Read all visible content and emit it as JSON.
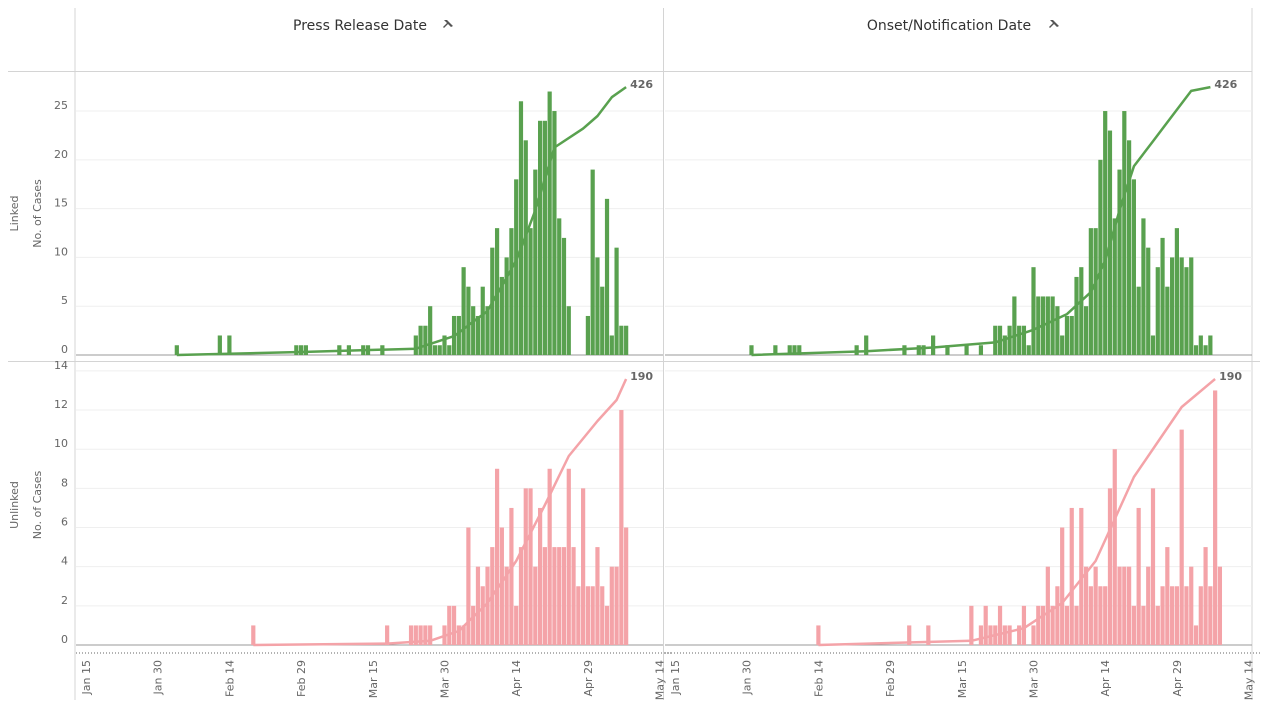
{
  "chart_data": [
    {
      "type": "bar",
      "title": "Press Release Date",
      "row_label": "Linked",
      "ylabel": "No. of Cases",
      "color": "#59a14f",
      "ylim": [
        0,
        29
      ],
      "yticks": [
        0,
        5,
        10,
        15,
        20,
        25
      ],
      "x": [
        "Feb 3",
        "Feb 12",
        "Feb 14",
        "Feb 28",
        "Feb 29",
        "Mar 1",
        "Mar 8",
        "Mar 10",
        "Mar 13",
        "Mar 14",
        "Mar 17",
        "Mar 24",
        "Mar 25",
        "Mar 26",
        "Mar 27",
        "Mar 28",
        "Mar 29",
        "Mar 30",
        "Mar 31",
        "Apr 1",
        "Apr 2",
        "Apr 3",
        "Apr 4",
        "Apr 5",
        "Apr 6",
        "Apr 7",
        "Apr 8",
        "Apr 9",
        "Apr 10",
        "Apr 11",
        "Apr 12",
        "Apr 13",
        "Apr 14",
        "Apr 15",
        "Apr 16",
        "Apr 17",
        "Apr 18",
        "Apr 19",
        "Apr 20",
        "Apr 21",
        "Apr 22",
        "Apr 23",
        "Apr 24",
        "Apr 25",
        "Apr 29",
        "Apr 30",
        "May 1",
        "May 2",
        "May 3",
        "May 4",
        "May 5",
        "May 6",
        "May 7"
      ],
      "values": [
        1,
        2,
        2,
        1,
        1,
        1,
        1,
        1,
        1,
        1,
        1,
        2,
        3,
        3,
        5,
        1,
        1,
        2,
        1,
        4,
        4,
        9,
        7,
        5,
        4,
        7,
        5,
        11,
        13,
        8,
        10,
        13,
        18,
        26,
        22,
        13,
        19,
        24,
        24,
        27,
        25,
        14,
        12,
        5,
        4,
        19,
        10,
        7,
        16,
        2,
        11,
        3,
        3
      ],
      "line": {
        "y2lim": [
          0,
          450
        ],
        "x": [
          "Feb 3",
          "Mar 1",
          "Mar 24",
          "Apr 1",
          "Apr 8",
          "Apr 14",
          "Apr 18",
          "Apr 22",
          "Apr 28",
          "May 1",
          "May 4",
          "May 7"
        ],
        "values": [
          0,
          5,
          10,
          30,
          70,
          150,
          230,
          330,
          360,
          380,
          410,
          426
        ]
      }
    },
    {
      "type": "bar",
      "title": "Onset/Notification Date",
      "color": "#59a14f",
      "ylim": [
        0,
        29
      ],
      "x": [
        "Jan 31",
        "Feb 5",
        "Feb 8",
        "Feb 9",
        "Feb 10",
        "Feb 22",
        "Feb 24",
        "Mar 3",
        "Mar 6",
        "Mar 7",
        "Mar 9",
        "Mar 12",
        "Mar 16",
        "Mar 19",
        "Mar 22",
        "Mar 23",
        "Mar 24",
        "Mar 25",
        "Mar 26",
        "Mar 27",
        "Mar 28",
        "Mar 29",
        "Mar 30",
        "Mar 31",
        "Apr 1",
        "Apr 2",
        "Apr 3",
        "Apr 4",
        "Apr 5",
        "Apr 6",
        "Apr 7",
        "Apr 8",
        "Apr 9",
        "Apr 10",
        "Apr 11",
        "Apr 12",
        "Apr 13",
        "Apr 14",
        "Apr 15",
        "Apr 16",
        "Apr 17",
        "Apr 18",
        "Apr 19",
        "Apr 20",
        "Apr 21",
        "Apr 22",
        "Apr 23",
        "Apr 24",
        "Apr 25",
        "Apr 26",
        "Apr 27",
        "Apr 28",
        "Apr 29",
        "Apr 30",
        "May 1",
        "May 2",
        "May 3",
        "May 4",
        "May 5",
        "May 6"
      ],
      "values": [
        1,
        1,
        1,
        1,
        1,
        1,
        2,
        1,
        1,
        1,
        2,
        1,
        1,
        1,
        3,
        3,
        2,
        3,
        6,
        3,
        3,
        1,
        9,
        6,
        6,
        6,
        6,
        5,
        2,
        4,
        4,
        8,
        9,
        5,
        13,
        13,
        20,
        25,
        23,
        14,
        19,
        25,
        22,
        18,
        7,
        14,
        11,
        2,
        9,
        12,
        7,
        10,
        13,
        10,
        9,
        10,
        1,
        2,
        1,
        2
      ],
      "line": {
        "y2lim": [
          0,
          450
        ],
        "x": [
          "Jan 31",
          "Feb 24",
          "Mar 9",
          "Mar 22",
          "Mar 30",
          "Apr 6",
          "Apr 11",
          "Apr 14",
          "Apr 17",
          "Apr 20",
          "Apr 24",
          "Apr 28",
          "May 2",
          "May 6"
        ],
        "values": [
          0,
          6,
          12,
          20,
          40,
          65,
          100,
          150,
          230,
          300,
          340,
          380,
          420,
          426
        ]
      }
    },
    {
      "type": "bar",
      "row_label": "Unlinked",
      "ylabel": "No. of Cases",
      "color": "#f4a3a8",
      "ylim": [
        0,
        14.3
      ],
      "yticks": [
        0,
        2,
        4,
        6,
        8,
        10,
        12,
        14
      ],
      "xticks": [
        "Jan 15",
        "Jan 30",
        "Feb 14",
        "Feb 29",
        "Mar 15",
        "Mar 30",
        "Apr 14",
        "Apr 29",
        "May 14"
      ],
      "x": [
        "Feb 19",
        "Mar 18",
        "Mar 23",
        "Mar 24",
        "Mar 25",
        "Mar 26",
        "Mar 27",
        "Mar 30",
        "Mar 31",
        "Apr 1",
        "Apr 2",
        "Apr 3",
        "Apr 4",
        "Apr 5",
        "Apr 6",
        "Apr 7",
        "Apr 8",
        "Apr 9",
        "Apr 10",
        "Apr 11",
        "Apr 12",
        "Apr 13",
        "Apr 14",
        "Apr 15",
        "Apr 16",
        "Apr 17",
        "Apr 18",
        "Apr 19",
        "Apr 20",
        "Apr 21",
        "Apr 22",
        "Apr 23",
        "Apr 24",
        "Apr 25",
        "Apr 26",
        "Apr 27",
        "Apr 28",
        "Apr 29",
        "Apr 30",
        "May 1",
        "May 2",
        "May 3",
        "May 4",
        "May 5",
        "May 6",
        "May 7"
      ],
      "values": [
        1,
        1,
        1,
        1,
        1,
        1,
        1,
        1,
        2,
        2,
        1,
        1,
        6,
        2,
        4,
        3,
        4,
        5,
        9,
        6,
        4,
        7,
        2,
        5,
        8,
        8,
        4,
        7,
        5,
        9,
        5,
        5,
        5,
        9,
        5,
        3,
        8,
        3,
        3,
        5,
        3,
        2,
        4,
        4,
        12,
        6
      ],
      "line": {
        "y2lim": [
          0,
          200
        ],
        "x": [
          "Feb 19",
          "Mar 18",
          "Mar 27",
          "Apr 2",
          "Apr 8",
          "Apr 14",
          "Apr 20",
          "Apr 25",
          "May 1",
          "May 5",
          "May 7"
        ],
        "values": [
          0,
          1,
          3,
          10,
          30,
          60,
          100,
          135,
          160,
          175,
          190
        ]
      }
    },
    {
      "type": "bar",
      "color": "#f4a3a8",
      "ylim": [
        0,
        14.3
      ],
      "xticks": [
        "Jan 15",
        "Jan 30",
        "Feb 14",
        "Feb 29",
        "Mar 15",
        "Mar 30",
        "Apr 14",
        "Apr 29",
        "May 14"
      ],
      "x": [
        "Feb 14",
        "Mar 4",
        "Mar 8",
        "Mar 17",
        "Mar 19",
        "Mar 20",
        "Mar 21",
        "Mar 22",
        "Mar 23",
        "Mar 24",
        "Mar 25",
        "Mar 27",
        "Mar 28",
        "Mar 30",
        "Mar 31",
        "Apr 1",
        "Apr 2",
        "Apr 3",
        "Apr 4",
        "Apr 5",
        "Apr 6",
        "Apr 7",
        "Apr 8",
        "Apr 9",
        "Apr 10",
        "Apr 11",
        "Apr 12",
        "Apr 13",
        "Apr 14",
        "Apr 15",
        "Apr 16",
        "Apr 17",
        "Apr 18",
        "Apr 19",
        "Apr 20",
        "Apr 21",
        "Apr 22",
        "Apr 23",
        "Apr 24",
        "Apr 25",
        "Apr 26",
        "Apr 27",
        "Apr 28",
        "Apr 29",
        "Apr 30",
        "May 1",
        "May 2",
        "May 3",
        "May 4",
        "May 5",
        "May 6",
        "May 7",
        "May 8"
      ],
      "values": [
        1,
        1,
        1,
        2,
        1,
        2,
        1,
        1,
        2,
        1,
        1,
        1,
        2,
        1,
        2,
        2,
        4,
        2,
        3,
        6,
        2,
        7,
        2,
        7,
        4,
        3,
        4,
        3,
        3,
        8,
        10,
        4,
        4,
        4,
        2,
        7,
        2,
        4,
        8,
        2,
        3,
        5,
        3,
        3,
        11,
        3,
        4,
        1,
        3,
        5,
        3,
        13,
        4
      ],
      "line": {
        "y2lim": [
          0,
          200
        ],
        "x": [
          "Feb 14",
          "Mar 17",
          "Mar 28",
          "Apr 5",
          "Apr 12",
          "Apr 16",
          "Apr 20",
          "Apr 25",
          "Apr 30",
          "May 7"
        ],
        "values": [
          0,
          3,
          12,
          30,
          60,
          90,
          120,
          145,
          170,
          190
        ]
      }
    }
  ]
}
